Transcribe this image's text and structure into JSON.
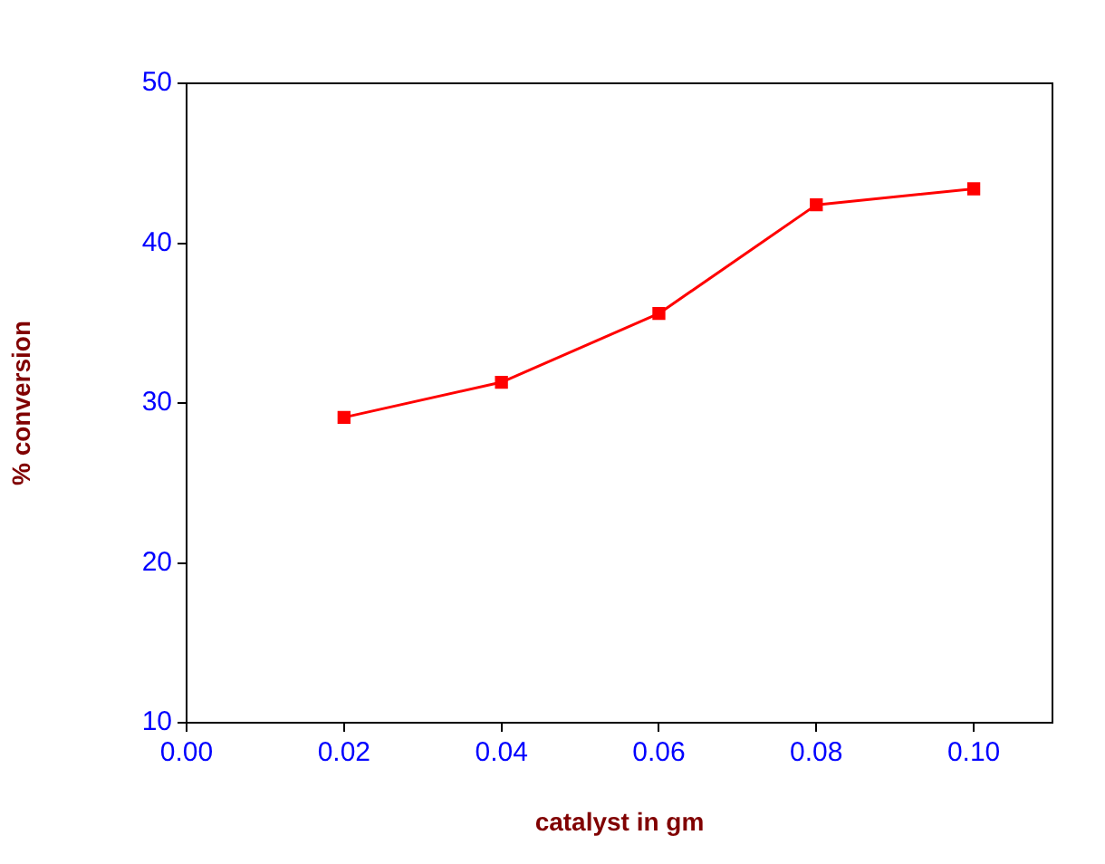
{
  "chart_data": {
    "type": "line",
    "xlabel": "catalyst in gm",
    "ylabel": "% conversion",
    "x": [
      0.02,
      0.04,
      0.06,
      0.08,
      0.1
    ],
    "series": [
      {
        "color": "#ff0000",
        "values": [
          29.1,
          31.3,
          35.6,
          42.4,
          43.4
        ]
      }
    ],
    "xlim": [
      0,
      0.11
    ],
    "xticks": [
      {
        "value": 0,
        "label": "0.00"
      },
      {
        "value": 0.02,
        "label": "0.02"
      },
      {
        "value": 0.04,
        "label": "0.04"
      },
      {
        "value": 0.06,
        "label": "0.06"
      },
      {
        "value": 0.08,
        "label": "0.08"
      },
      {
        "value": 0.1,
        "label": "0.10"
      }
    ],
    "ylim": [
      10,
      50
    ],
    "yticks": [
      10,
      20,
      30,
      40,
      50
    ],
    "grid": false,
    "legend": false,
    "marker": "square",
    "line_style": "solid"
  }
}
